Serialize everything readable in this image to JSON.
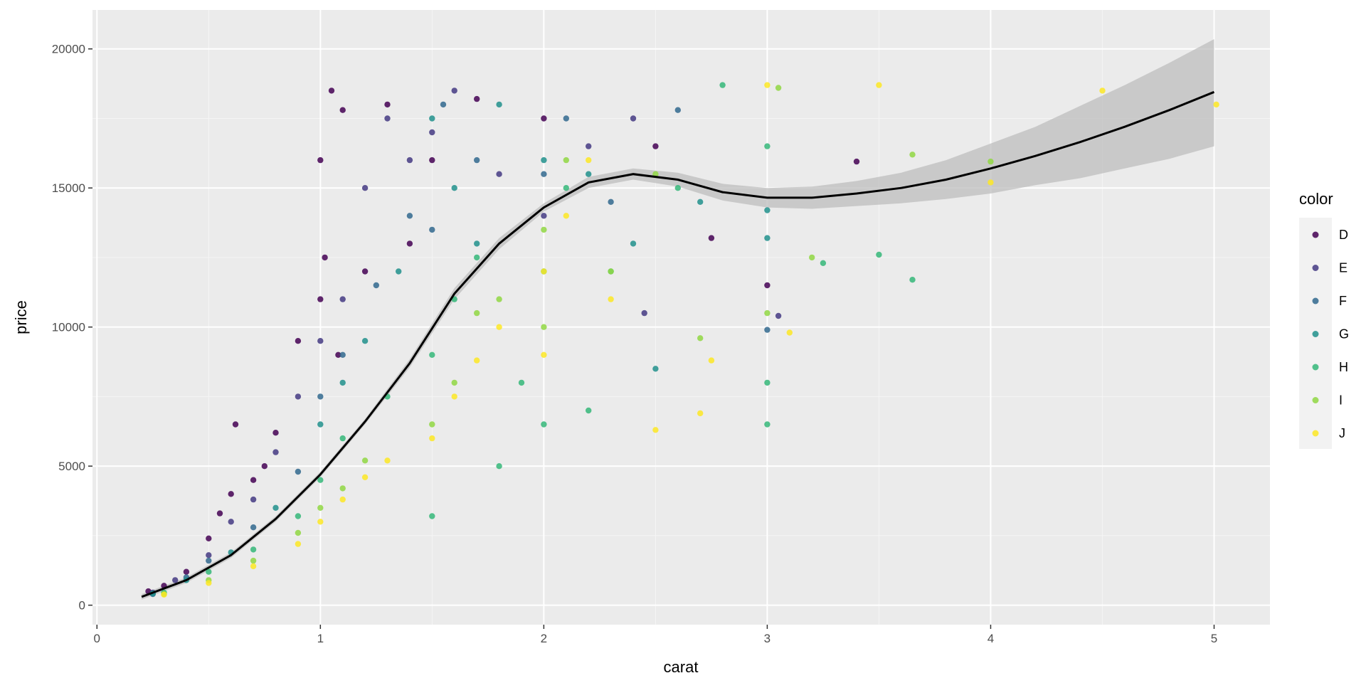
{
  "chart_data": {
    "type": "scatter",
    "xlabel": "carat",
    "ylabel": "price",
    "xlim": [
      -0.02,
      5.25
    ],
    "ylim": [
      -700,
      21400
    ],
    "x_ticks": [
      0,
      1,
      2,
      3,
      4,
      5
    ],
    "x_tick_labels": [
      "0",
      "1",
      "2",
      "3",
      "4",
      "5"
    ],
    "y_ticks": [
      0,
      5000,
      10000,
      15000,
      20000
    ],
    "y_tick_labels": [
      "0",
      "5000",
      "10000",
      "15000",
      "20000"
    ],
    "grid": true,
    "background": "#ebebeb",
    "legend": {
      "title": "color",
      "position": "right",
      "entries": [
        "D",
        "E",
        "F",
        "G",
        "H",
        "I",
        "J"
      ]
    },
    "series": [
      {
        "name": "D",
        "color": "#440154",
        "points": [
          [
            0.23,
            500
          ],
          [
            0.3,
            700
          ],
          [
            0.4,
            1200
          ],
          [
            0.5,
            2400
          ],
          [
            0.55,
            3300
          ],
          [
            0.6,
            4000
          ],
          [
            0.62,
            6500
          ],
          [
            0.7,
            4500
          ],
          [
            0.75,
            5000
          ],
          [
            0.8,
            6200
          ],
          [
            0.9,
            9500
          ],
          [
            1.0,
            16000
          ],
          [
            1.0,
            11000
          ],
          [
            1.02,
            12500
          ],
          [
            1.05,
            18500
          ],
          [
            1.08,
            9000
          ],
          [
            1.1,
            17800
          ],
          [
            1.2,
            12000
          ],
          [
            1.3,
            18000
          ],
          [
            1.4,
            13000
          ],
          [
            1.5,
            16000
          ],
          [
            1.7,
            18200
          ],
          [
            2.0,
            17500
          ],
          [
            2.5,
            16500
          ],
          [
            2.75,
            13200
          ],
          [
            3.0,
            11500
          ],
          [
            3.4,
            15950
          ]
        ]
      },
      {
        "name": "E",
        "color": "#443983",
        "points": [
          [
            0.25,
            450
          ],
          [
            0.35,
            900
          ],
          [
            0.5,
            1800
          ],
          [
            0.6,
            3000
          ],
          [
            0.7,
            3800
          ],
          [
            0.8,
            5500
          ],
          [
            0.9,
            7500
          ],
          [
            1.0,
            9500
          ],
          [
            1.1,
            11000
          ],
          [
            1.2,
            15000
          ],
          [
            1.3,
            17500
          ],
          [
            1.4,
            16000
          ],
          [
            1.5,
            17000
          ],
          [
            1.6,
            18500
          ],
          [
            1.8,
            15500
          ],
          [
            2.0,
            14000
          ],
          [
            2.2,
            16500
          ],
          [
            2.4,
            17500
          ],
          [
            2.45,
            10500
          ],
          [
            3.05,
            10400
          ]
        ]
      },
      {
        "name": "F",
        "color": "#31688e",
        "points": [
          [
            0.25,
            400
          ],
          [
            0.4,
            1000
          ],
          [
            0.5,
            1600
          ],
          [
            0.7,
            2800
          ],
          [
            0.9,
            4800
          ],
          [
            1.0,
            7500
          ],
          [
            1.1,
            9000
          ],
          [
            1.25,
            11500
          ],
          [
            1.4,
            14000
          ],
          [
            1.5,
            13500
          ],
          [
            1.55,
            18000
          ],
          [
            1.7,
            16000
          ],
          [
            2.0,
            15500
          ],
          [
            2.1,
            17500
          ],
          [
            2.3,
            14500
          ],
          [
            2.6,
            17800
          ],
          [
            3.0,
            9900
          ]
        ]
      },
      {
        "name": "G",
        "color": "#21918c",
        "points": [
          [
            0.25,
            420
          ],
          [
            0.4,
            900
          ],
          [
            0.6,
            1900
          ],
          [
            0.8,
            3500
          ],
          [
            1.0,
            6500
          ],
          [
            1.1,
            8000
          ],
          [
            1.2,
            9500
          ],
          [
            1.35,
            12000
          ],
          [
            1.5,
            17500
          ],
          [
            1.6,
            15000
          ],
          [
            1.7,
            13000
          ],
          [
            1.8,
            18000
          ],
          [
            2.0,
            16000
          ],
          [
            2.2,
            15500
          ],
          [
            2.4,
            13000
          ],
          [
            2.5,
            8500
          ],
          [
            2.7,
            14500
          ],
          [
            3.0,
            14200
          ],
          [
            3.0,
            13200
          ]
        ]
      },
      {
        "name": "H",
        "color": "#35b779",
        "points": [
          [
            0.3,
            450
          ],
          [
            0.5,
            1200
          ],
          [
            0.7,
            2000
          ],
          [
            0.9,
            3200
          ],
          [
            1.0,
            4500
          ],
          [
            1.1,
            6000
          ],
          [
            1.3,
            7500
          ],
          [
            1.5,
            3200
          ],
          [
            1.5,
            9000
          ],
          [
            1.6,
            11000
          ],
          [
            1.7,
            12500
          ],
          [
            1.8,
            5000
          ],
          [
            1.9,
            8000
          ],
          [
            2.0,
            6500
          ],
          [
            2.0,
            12000
          ],
          [
            2.1,
            15000
          ],
          [
            2.2,
            7000
          ],
          [
            2.3,
            12000
          ],
          [
            2.6,
            15000
          ],
          [
            2.8,
            18700
          ],
          [
            3.0,
            6500
          ],
          [
            3.0,
            8000
          ],
          [
            3.0,
            16500
          ],
          [
            3.25,
            12300
          ],
          [
            3.5,
            12600
          ],
          [
            3.65,
            11700
          ]
        ]
      },
      {
        "name": "I",
        "color": "#90d743",
        "points": [
          [
            0.3,
            400
          ],
          [
            0.5,
            900
          ],
          [
            0.7,
            1600
          ],
          [
            0.9,
            2600
          ],
          [
            1.0,
            3500
          ],
          [
            1.1,
            4200
          ],
          [
            1.2,
            5200
          ],
          [
            1.5,
            6500
          ],
          [
            1.6,
            8000
          ],
          [
            1.7,
            10500
          ],
          [
            1.8,
            11000
          ],
          [
            2.0,
            10000
          ],
          [
            2.0,
            13500
          ],
          [
            2.1,
            16000
          ],
          [
            2.3,
            12000
          ],
          [
            2.5,
            15500
          ],
          [
            2.7,
            9600
          ],
          [
            3.0,
            10500
          ],
          [
            3.05,
            18600
          ],
          [
            3.2,
            12500
          ],
          [
            3.65,
            16200
          ],
          [
            4.0,
            15950
          ]
        ]
      },
      {
        "name": "J",
        "color": "#fde725",
        "points": [
          [
            0.3,
            380
          ],
          [
            0.5,
            800
          ],
          [
            0.7,
            1400
          ],
          [
            0.9,
            2200
          ],
          [
            1.0,
            3000
          ],
          [
            1.1,
            3800
          ],
          [
            1.2,
            4600
          ],
          [
            1.3,
            5200
          ],
          [
            1.5,
            6000
          ],
          [
            1.6,
            7500
          ],
          [
            1.7,
            8800
          ],
          [
            1.8,
            10000
          ],
          [
            2.0,
            9000
          ],
          [
            2.0,
            12000
          ],
          [
            2.1,
            14000
          ],
          [
            2.2,
            16000
          ],
          [
            2.3,
            11000
          ],
          [
            2.5,
            6300
          ],
          [
            2.7,
            6900
          ],
          [
            2.75,
            8800
          ],
          [
            3.0,
            18700
          ],
          [
            3.1,
            9800
          ],
          [
            3.5,
            18700
          ],
          [
            4.0,
            15200
          ],
          [
            4.5,
            18500
          ],
          [
            5.01,
            18000
          ]
        ]
      }
    ],
    "smooth": {
      "color": "#000000",
      "band_color": "#bebebe",
      "x": [
        0.2,
        0.4,
        0.6,
        0.8,
        1.0,
        1.2,
        1.4,
        1.6,
        1.8,
        2.0,
        2.2,
        2.4,
        2.6,
        2.8,
        3.0,
        3.2,
        3.4,
        3.6,
        3.8,
        4.0,
        4.2,
        4.4,
        4.6,
        4.8,
        5.0
      ],
      "y": [
        300,
        900,
        1800,
        3100,
        4700,
        6600,
        8700,
        11200,
        13000,
        14300,
        15200,
        15500,
        15300,
        14850,
        14650,
        14650,
        14800,
        15000,
        15300,
        15700,
        16150,
        16650,
        17200,
        17800,
        18450
      ],
      "lower": [
        200,
        800,
        1700,
        3000,
        4600,
        6500,
        8550,
        11000,
        12800,
        14150,
        15000,
        15300,
        15050,
        14550,
        14300,
        14250,
        14350,
        14450,
        14600,
        14800,
        15100,
        15350,
        15700,
        16050,
        16500
      ],
      "upper": [
        400,
        1000,
        1900,
        3200,
        4800,
        6700,
        8850,
        11400,
        13200,
        14450,
        15400,
        15700,
        15550,
        15150,
        15000,
        15050,
        15250,
        15550,
        16000,
        16600,
        17200,
        17950,
        18700,
        19500,
        20350
      ]
    }
  }
}
